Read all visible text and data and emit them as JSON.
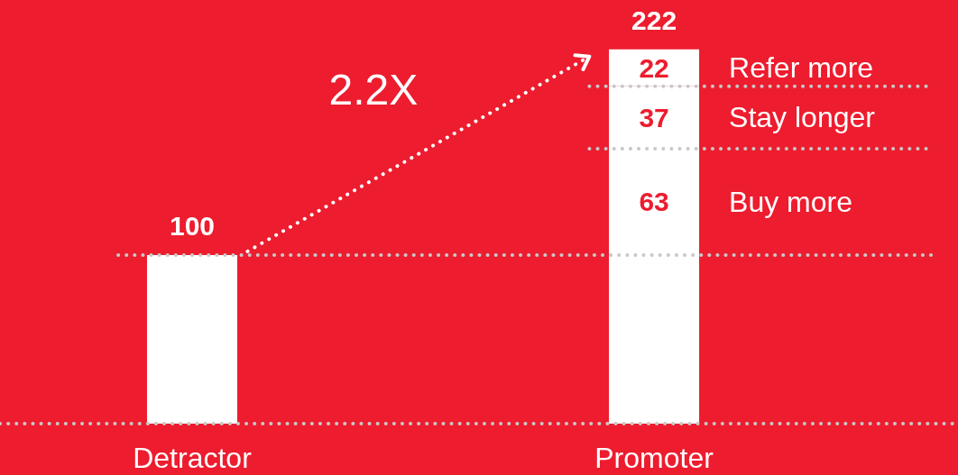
{
  "chart_data": {
    "type": "bar",
    "stacked": true,
    "categories": [
      "Detractor",
      "Promoter"
    ],
    "series": [
      {
        "color": "#ffffff",
        "values": [
          100,
          100
        ],
        "value_labels": [
          "100",
          null
        ]
      },
      {
        "name": "Buy more",
        "color": "#ffffff",
        "values": [
          null,
          63
        ],
        "value_labels": [
          null,
          "63"
        ]
      },
      {
        "name": "Stay longer",
        "color": "#ffffff",
        "values": [
          null,
          37
        ],
        "value_labels": [
          null,
          "37"
        ]
      },
      {
        "name": "Refer more",
        "color": "#ffffff",
        "values": [
          null,
          22
        ],
        "value_labels": [
          null,
          "22"
        ]
      }
    ],
    "totals": [
      null,
      "222"
    ],
    "ref_lines": [
      {
        "axis": "y",
        "value": 100,
        "color": "#c8c8c8",
        "line_style": "dotted"
      },
      {
        "axis": "y",
        "value": 163,
        "color": "#c8c8c8",
        "line_style": "dotted"
      },
      {
        "axis": "y",
        "value": 200,
        "color": "#c8c8c8",
        "line_style": "dotted"
      }
    ],
    "annotations": [
      "2.2X"
    ]
  }
}
